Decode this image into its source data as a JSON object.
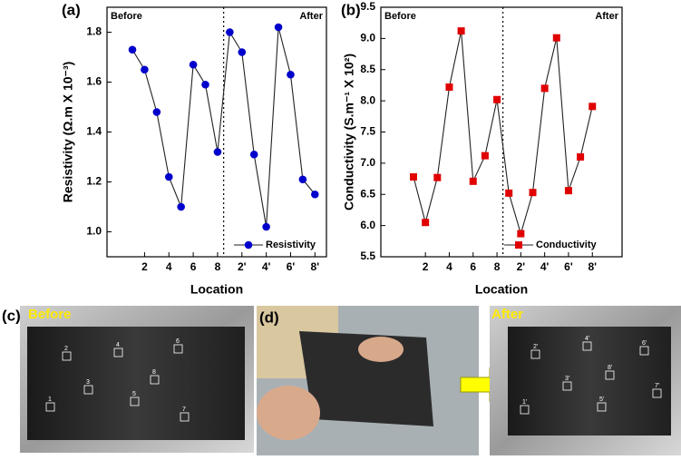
{
  "chart_data": [
    {
      "type": "line",
      "panel_label": "(a)",
      "categories": [
        null,
        "2",
        null,
        "4",
        null,
        "6",
        null,
        "8",
        null,
        "2'",
        null,
        "4'",
        null,
        "6'",
        null,
        "8'"
      ],
      "series": [
        {
          "name": "Resistivity",
          "color": "#0000cc",
          "values": [
            1.73,
            1.65,
            1.48,
            1.22,
            1.1,
            1.67,
            1.59,
            1.32,
            1.8,
            1.72,
            1.31,
            1.02,
            1.82,
            1.63,
            1.21,
            1.15
          ]
        }
      ],
      "ylim": [
        0.9,
        1.9
      ],
      "yticks": [
        {
          "value": 1,
          "label": "1.0"
        },
        1.2,
        1.4,
        1.6,
        1.8
      ],
      "x_label": "Location",
      "y_label": "Resistivity (Ω.m X 10⁻³)",
      "annotations": [
        "Before",
        "After"
      ],
      "marker": "circle",
      "legend": "lower right"
    },
    {
      "type": "line",
      "panel_label": "(b)",
      "categories": [
        null,
        "2",
        null,
        "4",
        null,
        "6",
        null,
        "8",
        null,
        "2'",
        null,
        "4'",
        null,
        "6'",
        null,
        "8'"
      ],
      "series": [
        {
          "name": "Conductivity",
          "color": "#e00000",
          "values": [
            6.78,
            6.05,
            6.77,
            8.22,
            9.12,
            6.71,
            7.12,
            8.02,
            6.52,
            5.87,
            6.53,
            8.2,
            9.01,
            6.56,
            7.1,
            7.91
          ]
        }
      ],
      "ylim": [
        5.5,
        9.5
      ],
      "yticks": [
        5.5,
        {
          "value": 6,
          "label": "6.0"
        },
        6.5,
        {
          "value": 7,
          "label": "7.0"
        },
        7.5,
        {
          "value": 8,
          "label": "8.0"
        },
        8.5,
        {
          "value": 9,
          "label": "9.0"
        },
        9.5
      ],
      "x_label": "Location",
      "y_label": "Conductivity (S.m⁻¹ X 10²)",
      "annotations": [
        "Before",
        "After"
      ],
      "marker": "square",
      "legend": "lower right"
    }
  ],
  "photos": {
    "c": {
      "panel_label": "(c)",
      "caption": "Before",
      "markers": [
        "1",
        "2",
        "3",
        "4",
        "5",
        "6",
        "7",
        "8"
      ]
    },
    "d": {
      "panel_label": "(d)",
      "caption": "After",
      "markers": [
        "1'",
        "2'",
        "3'",
        "4'",
        "5'",
        "6'",
        "7'",
        "8'"
      ]
    }
  }
}
